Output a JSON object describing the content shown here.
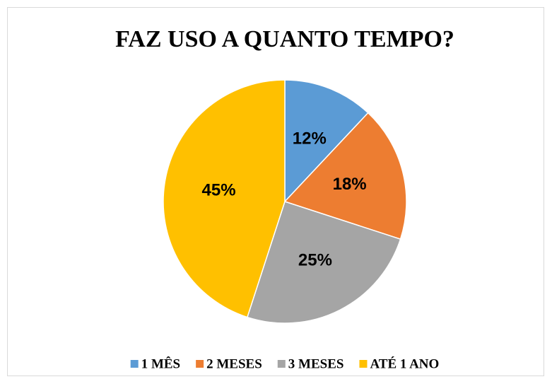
{
  "chart_data": {
    "type": "pie",
    "title": "FAZ USO A QUANTO TEMPO?",
    "categories": [
      "1 MÊS",
      "2 MESES",
      "3 MESES",
      "ATÉ 1 ANO"
    ],
    "values": [
      12,
      18,
      25,
      45
    ],
    "value_labels": [
      "12%",
      "18%",
      "25%",
      "45%"
    ],
    "colors": [
      "#5b9bd5",
      "#ed7d31",
      "#a5a5a5",
      "#ffc000"
    ],
    "legend": "bottom"
  }
}
